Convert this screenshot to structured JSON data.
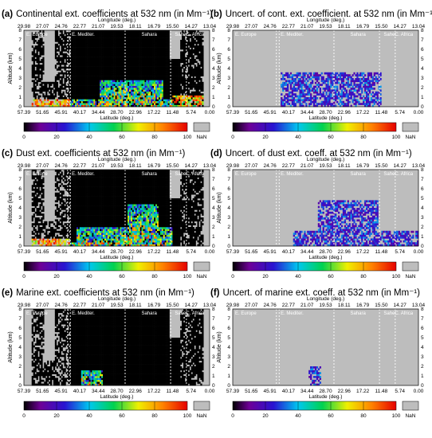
{
  "figure": {
    "common": {
      "longitude_label": "Longitude (deg.)",
      "latitude_label": "Latitude (deg.)",
      "altitude_label": "Altitude (km)",
      "longitude_ticks": [
        "29.98",
        "27.07",
        "24.76",
        "22.77",
        "21.07",
        "19.53",
        "18.11",
        "16.79",
        "15.50",
        "14.27",
        "13.04"
      ],
      "latitude_ticks": [
        "57.39",
        "51.65",
        "45.91",
        "40.17",
        "34.44",
        "28.70",
        "22.96",
        "17.22",
        "11.48",
        "5.74",
        "0.00"
      ],
      "altitude_ticks": [
        "0",
        "1",
        "2",
        "3",
        "4",
        "5",
        "6",
        "7",
        "8"
      ],
      "regions": [
        "E. Europe",
        "E. Mediter.",
        "Sahara",
        "Sahel",
        "C. Africa"
      ],
      "colorbar_ticks": [
        "0",
        "20",
        "40",
        "60",
        "80",
        "100"
      ],
      "nan_label": "NaN"
    },
    "panels": [
      {
        "letter": "(a)",
        "title": "Continental ext. coefficients at 532 nm (in Mm⁻¹)"
      },
      {
        "letter": "(b)",
        "title": "Uncert. of cont. ext. coefficient. at 532 nm (in Mm⁻¹)"
      },
      {
        "letter": "(c)",
        "title": "Dust ext. coefficients at 532 nm (in Mm⁻¹)"
      },
      {
        "letter": "(d)",
        "title": "Uncert. of dust ext. coeff. at 532 nm (in Mm⁻¹)"
      },
      {
        "letter": "(e)",
        "title": "Marine ext. coefficients at 532 nm (in Mm⁻¹)"
      },
      {
        "letter": "(f)",
        "title": "Uncert. of marine ext. coeff. at 532 nm (in Mm⁻¹)"
      }
    ]
  },
  "chart_data": [
    {
      "type": "heatmap",
      "title": "Continental ext. coefficients at 532 nm (in Mm⁻¹)",
      "xlabel": "Latitude (deg.)",
      "ylabel": "Altitude (km)",
      "ylim": [
        0,
        8
      ],
      "colorbar_range": [
        0,
        100
      ],
      "colormap": "rainbow (black-purple-blue-cyan-green-yellow-orange-red)",
      "nan_color": "#c0c0c0"
    },
    {
      "type": "heatmap",
      "title": "Uncert. of cont. ext. coefficient. at 532 nm (in Mm⁻¹)",
      "xlabel": "Latitude (deg.)",
      "ylabel": "Altitude (km)",
      "ylim": [
        0,
        8
      ],
      "colorbar_range": [
        0,
        100
      ],
      "colormap": "rainbow",
      "nan_color": "#c0c0c0"
    },
    {
      "type": "heatmap",
      "title": "Dust ext. coefficients at 532 nm (in Mm⁻¹)",
      "xlabel": "Latitude (deg.)",
      "ylabel": "Altitude (km)",
      "ylim": [
        0,
        8
      ],
      "colorbar_range": [
        0,
        100
      ],
      "colormap": "rainbow",
      "nan_color": "#c0c0c0"
    },
    {
      "type": "heatmap",
      "title": "Uncert. of dust ext. coeff. at 532 nm (in Mm⁻¹)",
      "xlabel": "Latitude (deg.)",
      "ylabel": "Altitude (km)",
      "ylim": [
        0,
        8
      ],
      "colorbar_range": [
        0,
        100
      ],
      "colormap": "rainbow",
      "nan_color": "#c0c0c0"
    },
    {
      "type": "heatmap",
      "title": "Marine ext. coefficients at 532 nm (in Mm⁻¹)",
      "xlabel": "Latitude (deg.)",
      "ylabel": "Altitude (km)",
      "ylim": [
        0,
        8
      ],
      "colorbar_range": [
        0,
        100
      ],
      "colormap": "rainbow",
      "nan_color": "#c0c0c0"
    },
    {
      "type": "heatmap",
      "title": "Uncert. of marine ext. coeff. at 532 nm (in Mm⁻¹)",
      "xlabel": "Latitude (deg.)",
      "ylabel": "Altitude (km)",
      "ylim": [
        0,
        8
      ],
      "colorbar_range": [
        0,
        100
      ],
      "colormap": "rainbow",
      "nan_color": "#c0c0c0"
    }
  ]
}
